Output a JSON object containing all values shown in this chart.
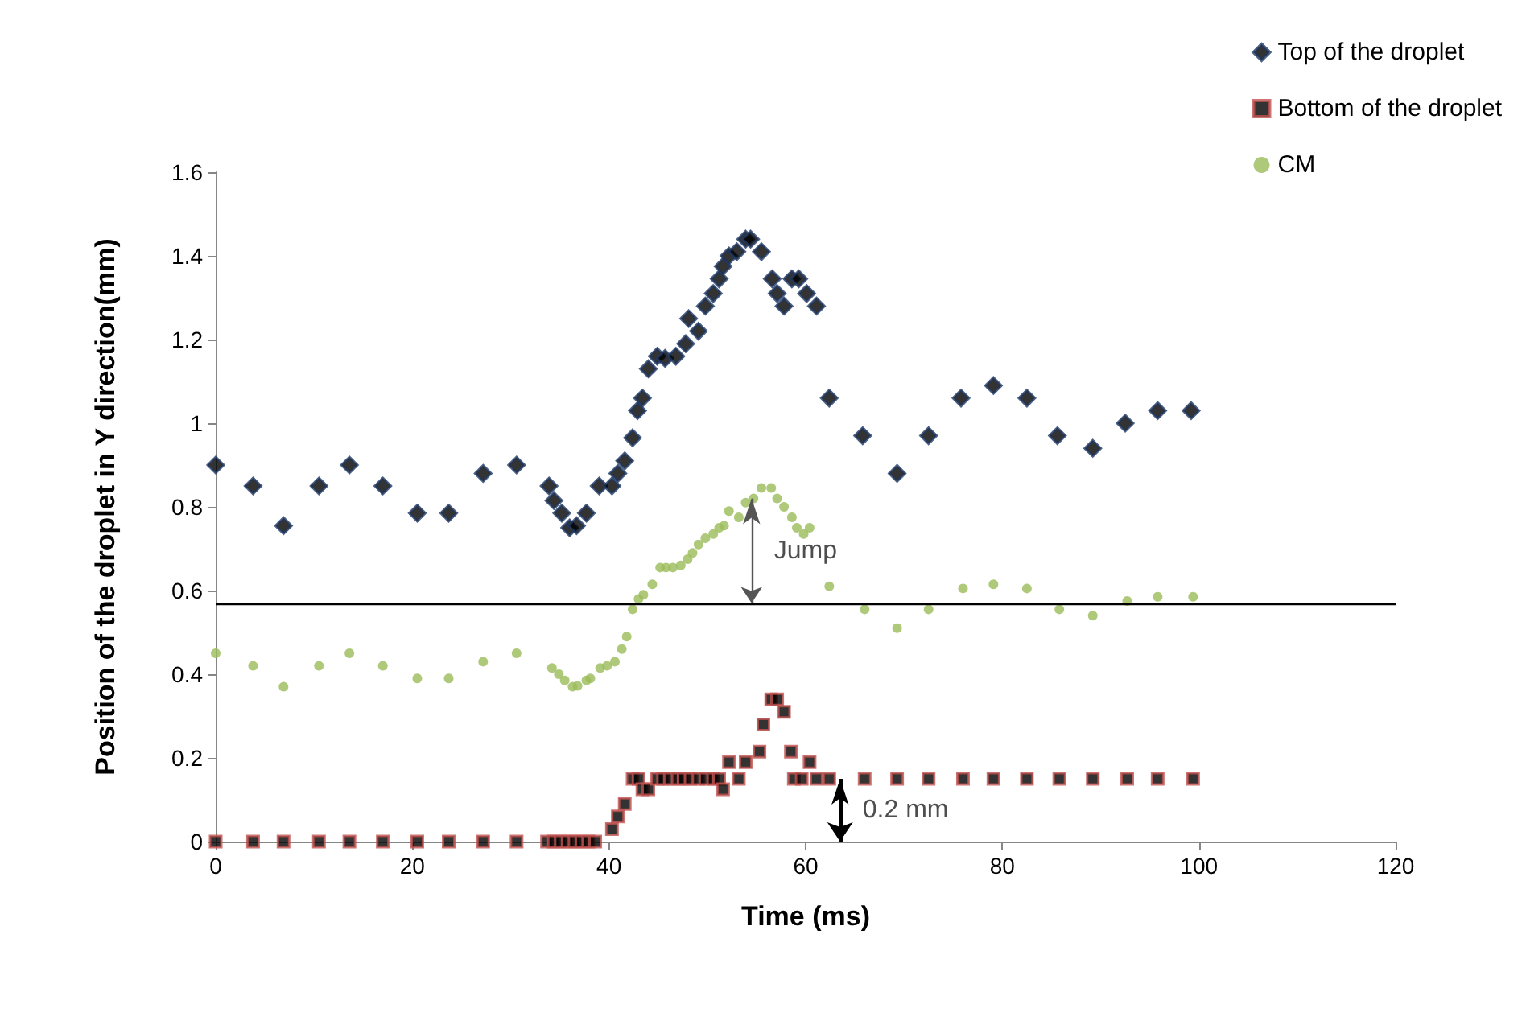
{
  "chart_data": {
    "type": "scatter",
    "xlabel": "Time (ms)",
    "ylabel": "Position of the droplet in Y direction(mm)",
    "xlim": [
      0,
      120
    ],
    "xticks": [
      0,
      20,
      40,
      60,
      80,
      100,
      120
    ],
    "ylim": [
      0,
      1.6
    ],
    "yticks": [
      0,
      0.2,
      0.4,
      0.6,
      0.8,
      1,
      1.2,
      1.4,
      1.6
    ],
    "grid": false,
    "legend": "top right",
    "series": [
      {
        "name": "Top of the droplet",
        "color": "#1f3864",
        "marker": "diamond",
        "x": [
          0,
          3.8,
          6.9,
          10.5,
          13.6,
          17,
          20.5,
          23.7,
          27.2,
          30.6,
          33.9,
          34.4,
          35.2,
          36,
          36.7,
          37.7,
          39,
          40.3,
          40.9,
          41.6,
          42.4,
          42.9,
          43.4,
          44,
          44.9,
          45.7,
          46.8,
          47.8,
          48.1,
          49.1,
          49.8,
          50.6,
          51.2,
          51.6,
          52.2,
          53,
          53.9,
          54.4,
          55.5,
          56.6,
          57.1,
          57.8,
          58.6,
          59.3,
          60.1,
          61.1,
          62.4,
          65.8,
          69.3,
          72.5,
          75.8,
          79.1,
          82.5,
          85.6,
          89.2,
          92.5,
          95.8,
          99.2
        ],
        "values": [
          0.9,
          0.85,
          0.755,
          0.85,
          0.9,
          0.85,
          0.785,
          0.785,
          0.88,
          0.9,
          0.85,
          0.815,
          0.785,
          0.75,
          0.755,
          0.785,
          0.85,
          0.85,
          0.88,
          0.91,
          0.965,
          1.03,
          1.06,
          1.13,
          1.16,
          1.155,
          1.16,
          1.19,
          1.25,
          1.22,
          1.28,
          1.31,
          1.345,
          1.375,
          1.4,
          1.41,
          1.44,
          1.44,
          1.41,
          1.345,
          1.31,
          1.28,
          1.345,
          1.345,
          1.31,
          1.28,
          1.06,
          0.97,
          0.88,
          0.97,
          1.06,
          1.09,
          1.06,
          0.97,
          0.94,
          1,
          1.03,
          1.03
        ]
      },
      {
        "name": "Bottom of the droplet",
        "color": "#c0504d",
        "marker": "square",
        "x": [
          0,
          3.8,
          6.9,
          10.5,
          13.6,
          17,
          20.5,
          23.7,
          27.2,
          30.6,
          33.7,
          34.4,
          35.1,
          35.8,
          36.5,
          37.2,
          37.9,
          38.6,
          40.3,
          40.9,
          41.6,
          42.4,
          43,
          43.4,
          44,
          44.9,
          45.5,
          46.2,
          47,
          47.6,
          48.3,
          49.1,
          49.8,
          50.6,
          51.2,
          51.6,
          52.2,
          53.2,
          53.9,
          55.3,
          55.7,
          56.5,
          57.1,
          57.8,
          58.5,
          58.8,
          59.6,
          60.4,
          61.1,
          62.4,
          66,
          69.3,
          72.5,
          76,
          79.1,
          82.5,
          85.8,
          89.2,
          92.7,
          95.8,
          99.4
        ],
        "values": [
          0,
          0,
          0,
          0,
          0,
          0,
          0,
          0,
          0,
          0,
          0,
          0,
          0,
          0,
          0,
          0,
          0,
          0,
          0.03,
          0.06,
          0.09,
          0.15,
          0.15,
          0.125,
          0.125,
          0.15,
          0.15,
          0.15,
          0.15,
          0.15,
          0.15,
          0.15,
          0.15,
          0.15,
          0.15,
          0.125,
          0.19,
          0.15,
          0.19,
          0.215,
          0.28,
          0.34,
          0.34,
          0.31,
          0.215,
          0.15,
          0.15,
          0.19,
          0.15,
          0.15,
          0.15,
          0.15,
          0.15,
          0.15,
          0.15,
          0.15,
          0.15,
          0.15,
          0.15,
          0.15,
          0.15
        ]
      },
      {
        "name": "CM",
        "color": "#9bbb59",
        "marker": "circle",
        "x": [
          0,
          3.8,
          6.9,
          10.5,
          13.6,
          17,
          20.5,
          23.7,
          27.2,
          30.6,
          34.2,
          34.9,
          35.5,
          36.3,
          36.8,
          37.7,
          38.1,
          39.1,
          39.8,
          40.6,
          41.3,
          41.8,
          42.4,
          43,
          43.5,
          44.4,
          45.2,
          45.8,
          46.5,
          47.3,
          48,
          48.5,
          49.1,
          49.8,
          50.6,
          51.2,
          51.7,
          52.2,
          53.2,
          53.9,
          54.7,
          55.5,
          56.5,
          57.1,
          57.8,
          58.6,
          59.1,
          59.8,
          60.4,
          62.4,
          66,
          69.3,
          72.5,
          76,
          79.1,
          82.5,
          85.8,
          89.2,
          92.7,
          95.8,
          99.4
        ],
        "values": [
          0.45,
          0.42,
          0.37,
          0.42,
          0.45,
          0.42,
          0.39,
          0.39,
          0.43,
          0.45,
          0.415,
          0.4,
          0.385,
          0.37,
          0.372,
          0.385,
          0.39,
          0.415,
          0.42,
          0.43,
          0.46,
          0.49,
          0.555,
          0.58,
          0.59,
          0.615,
          0.655,
          0.655,
          0.655,
          0.66,
          0.675,
          0.69,
          0.71,
          0.725,
          0.735,
          0.75,
          0.755,
          0.79,
          0.775,
          0.81,
          0.82,
          0.845,
          0.845,
          0.82,
          0.8,
          0.775,
          0.75,
          0.735,
          0.75,
          0.61,
          0.555,
          0.51,
          0.555,
          0.605,
          0.615,
          0.605,
          0.555,
          0.54,
          0.575,
          0.585,
          0.585
        ]
      }
    ],
    "ref_lines": [
      {
        "axis": "y",
        "value": 0.57,
        "color": "#000000"
      }
    ],
    "annotations": [
      {
        "text": "Jump",
        "x": 54.5,
        "y": 0.82
      },
      {
        "text": "0.2 mm",
        "x": 63.5,
        "y": 0.15
      }
    ]
  }
}
